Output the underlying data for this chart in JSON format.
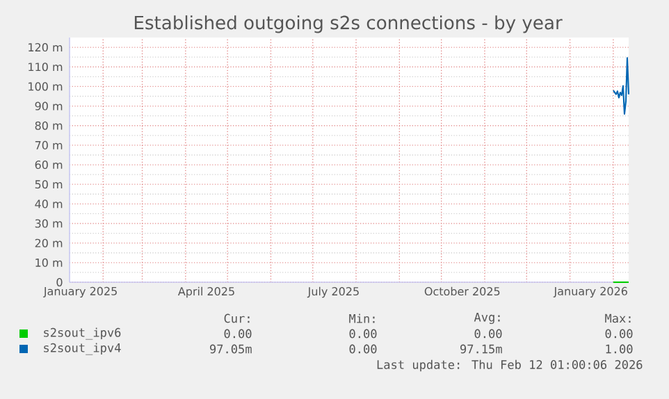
{
  "chart_data": {
    "type": "line",
    "title": "Established outgoing s2s connections - by year",
    "xlim": [
      "2025-01-08",
      "2026-02-12"
    ],
    "xticks": [
      {
        "value": "2025-01-16",
        "label": "January 2025"
      },
      {
        "value": "2025-04-16",
        "label": "April 2025"
      },
      {
        "value": "2025-07-16",
        "label": "July 2025"
      },
      {
        "value": "2025-10-16",
        "label": "October 2025"
      },
      {
        "value": "2026-01-16",
        "label": "January 2026"
      },
      {
        "value": "2025-02-01",
        "label": null
      },
      {
        "value": "2025-03-01",
        "label": null
      },
      {
        "value": "2025-04-01",
        "label": null
      },
      {
        "value": "2025-05-01",
        "label": null
      },
      {
        "value": "2025-06-01",
        "label": null
      },
      {
        "value": "2025-07-01",
        "label": null
      },
      {
        "value": "2025-08-01",
        "label": null
      },
      {
        "value": "2025-09-01",
        "label": null
      },
      {
        "value": "2025-10-01",
        "label": null
      },
      {
        "value": "2025-11-01",
        "label": null
      },
      {
        "value": "2025-12-01",
        "label": null
      },
      {
        "value": "2026-01-01",
        "label": null
      },
      {
        "value": "2026-02-01",
        "label": null
      }
    ],
    "ylim": [
      0,
      125
    ],
    "yticks": [
      0,
      {
        "value": 10,
        "label": "10 m"
      },
      {
        "value": 20,
        "label": "20 m"
      },
      {
        "value": 30,
        "label": "30 m"
      },
      {
        "value": 40,
        "label": "40 m"
      },
      {
        "value": 50,
        "label": "50 m"
      },
      {
        "value": 60,
        "label": "60 m"
      },
      {
        "value": 70,
        "label": "70 m"
      },
      {
        "value": 80,
        "label": "80 m"
      },
      {
        "value": 90,
        "label": "90 m"
      },
      {
        "value": 100,
        "label": "100 m"
      },
      {
        "value": 110,
        "label": "110 m"
      },
      {
        "value": 120,
        "label": "120 m"
      }
    ],
    "x": [
      "2026-02-01",
      "2026-02-03",
      "2026-02-04",
      "2026-02-05",
      "2026-02-06",
      "2026-02-07",
      "2026-02-08",
      "2026-02-09",
      "2026-02-10",
      "2026-02-11",
      "2026-02-12"
    ],
    "series": [
      {
        "name": "s2sout_ipv6",
        "color": "#00cc00",
        "values": [
          0,
          0,
          0,
          0,
          0,
          0,
          0,
          0,
          0,
          0,
          0
        ]
      },
      {
        "name": "s2sout_ipv4",
        "color": "#0066b3",
        "values": [
          98,
          96,
          97.6,
          94.3,
          96.9,
          95.5,
          100.3,
          86,
          92.4,
          114.6,
          96
        ]
      }
    ],
    "grid": true,
    "legend": "bottom",
    "line_style": "solid",
    "marker": "none",
    "annotations": [
      "Cur:",
      "Min:",
      "Avg:",
      "Max:",
      "0.00",
      "0.00",
      "0.00",
      "0.00",
      "97.05m",
      "0.00",
      "97.15m",
      "1.00",
      "Last update: Thu Feb 12 01:00:06 2026"
    ]
  }
}
